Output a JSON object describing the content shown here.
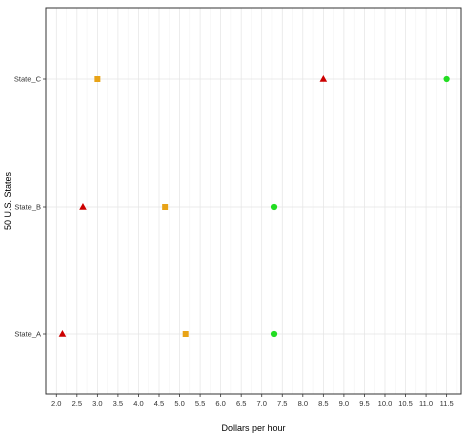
{
  "chart_data": {
    "type": "scatter",
    "title": "",
    "xlabel": "Dollars per hour",
    "ylabel": "50 U.S. States",
    "xlim": [
      1.75,
      11.85
    ],
    "x_ticks": [
      "2.0",
      "2.5",
      "3.0",
      "3.5",
      "4.0",
      "4.5",
      "5.0",
      "5.5",
      "6.0",
      "6.5",
      "7.0",
      "7.5",
      "8.0",
      "8.5",
      "9.0",
      "9.5",
      "10.0",
      "10.5",
      "11.0",
      "11.5"
    ],
    "categories": [
      "State_A",
      "State_B",
      "State_C"
    ],
    "grid": true,
    "legend": "none",
    "series": [
      {
        "marker": "triangle",
        "color": "#cc0000",
        "points": [
          {
            "category": "State_A",
            "x": 2.15
          },
          {
            "category": "State_B",
            "x": 2.65
          },
          {
            "category": "State_C",
            "x": 8.5
          }
        ]
      },
      {
        "marker": "square",
        "color": "#e8a317",
        "points": [
          {
            "category": "State_A",
            "x": 5.15
          },
          {
            "category": "State_B",
            "x": 4.65
          },
          {
            "category": "State_C",
            "x": 3.0
          }
        ]
      },
      {
        "marker": "circle",
        "color": "#22dd22",
        "points": [
          {
            "category": "State_A",
            "x": 7.3
          },
          {
            "category": "State_B",
            "x": 7.3
          },
          {
            "category": "State_C",
            "x": 11.5
          }
        ]
      }
    ]
  }
}
